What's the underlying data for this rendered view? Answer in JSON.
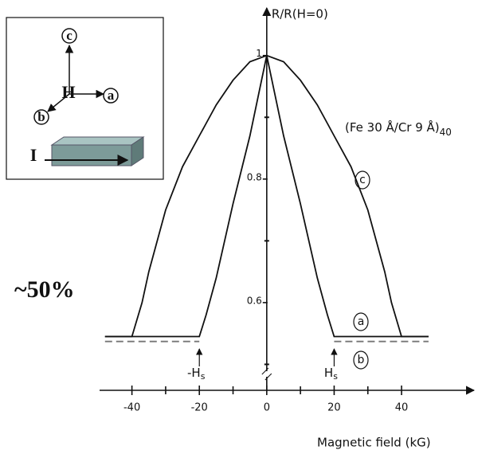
{
  "chart_data": {
    "type": "line",
    "y_label": "R/R(H=0)",
    "x_label": "Magnetic field (kG)",
    "sample_label": "(Fe 30 Å/Cr 9 Å)",
    "sample_label_subscript": "40",
    "field_marks": [
      {
        "value": -20,
        "text": "-H",
        "sub": "s"
      },
      {
        "value": 20,
        "text": "H",
        "sub": "s"
      }
    ],
    "x": [
      -48,
      -40,
      -37,
      -35,
      -30,
      -25,
      -20,
      -18,
      -15,
      -10,
      -5,
      0,
      5,
      10,
      15,
      18,
      20,
      25,
      30,
      35,
      37,
      40,
      48
    ],
    "series": [
      {
        "name": "c",
        "color": "#111111",
        "dashed": false,
        "values": [
          0.545,
          0.545,
          0.6,
          0.65,
          0.75,
          0.82,
          0.87,
          0.89,
          0.92,
          0.96,
          0.99,
          1,
          0.99,
          0.96,
          0.92,
          0.89,
          0.87,
          0.82,
          0.75,
          0.65,
          0.6,
          0.545,
          0.545
        ]
      },
      {
        "name": "a",
        "color": "#111111",
        "dashed": false,
        "values": [
          0.545,
          0.545,
          0.545,
          0.545,
          0.545,
          0.545,
          0.545,
          0.58,
          0.64,
          0.76,
          0.87,
          1,
          0.87,
          0.76,
          0.64,
          0.58,
          0.545,
          0.545,
          0.545,
          0.545,
          0.545,
          0.545,
          0.545
        ]
      },
      {
        "name": "b",
        "color": "#777777",
        "dashed": true,
        "values": [
          0.537,
          0.537,
          0.537,
          0.537,
          0.537,
          0.537,
          0.537,
          null,
          null,
          null,
          null,
          null,
          null,
          null,
          null,
          null,
          0.537,
          0.537,
          0.537,
          0.537,
          0.537,
          0.537,
          0.537
        ]
      }
    ],
    "xlim": [
      -49.6,
      61.5
    ],
    "xticks": [
      -40,
      -20,
      0,
      20,
      40
    ],
    "xminor_ticks": [
      -30,
      -10,
      10,
      30
    ],
    "ylim": [
      0.458,
      1.077
    ],
    "yticks": [
      0.6,
      0.8,
      1
    ],
    "yminor_ticks": [
      0.5,
      0.7,
      0.9
    ]
  },
  "note": "~50%",
  "inset_labels": [
    "c",
    "H",
    "a",
    "b",
    "I"
  ]
}
